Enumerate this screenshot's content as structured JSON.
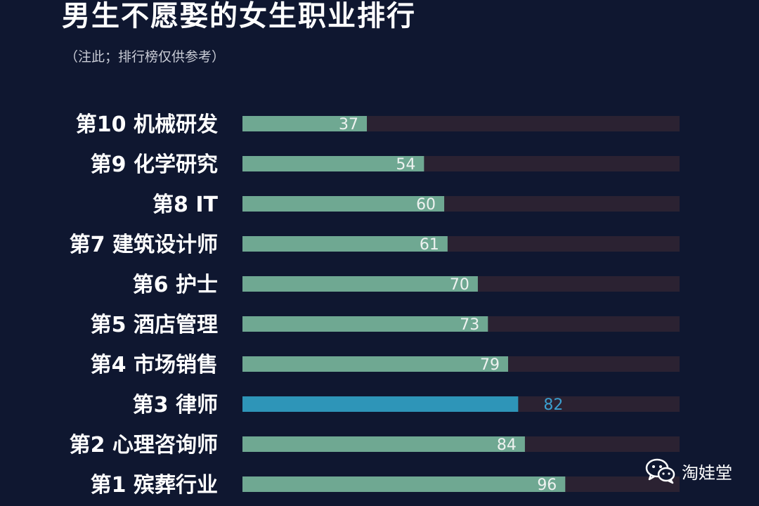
{
  "page": {
    "title": "男生不愿娶的女生职业排行",
    "subtitle": "（注此；排行榜仅供参考）",
    "watermark": "淘娃堂",
    "watermark_icon": "wechat-icon"
  },
  "colors": {
    "background": "#0f1730",
    "track": "#2b2232",
    "bar": "#6fa892",
    "highlight_bar": "#2e95b8",
    "value_text": "#eef2f0",
    "highlight_value_text": "#3b9fd0"
  },
  "chart_data": {
    "type": "bar",
    "orientation": "horizontal",
    "title": "男生不愿娶的女生职业排行",
    "subtitle": "（注此；排行榜仅供参考）",
    "categories": [
      "第10 机械研发",
      "第9 化学研究",
      "第8 IT",
      "第7 建筑设计师",
      "第6 护士",
      "第5 酒店管理",
      "第4 市场销售",
      "第3 律师",
      "第2 心理咨询师",
      "第1 殡葬行业"
    ],
    "values": [
      37,
      54,
      60,
      61,
      70,
      73,
      79,
      82,
      84,
      96
    ],
    "highlight_index": 7,
    "xlim": [
      0,
      130
    ],
    "grid": false,
    "legend": "none"
  }
}
